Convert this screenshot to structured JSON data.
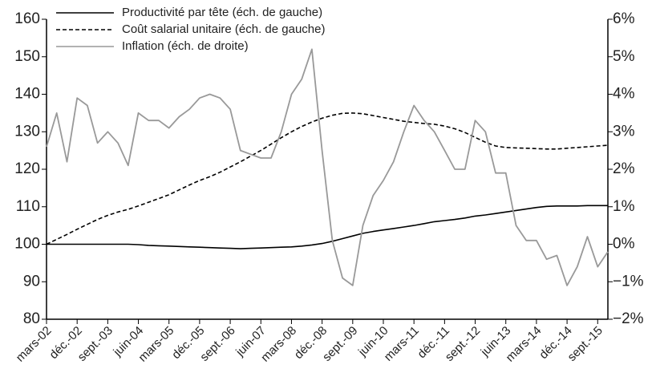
{
  "chart_data": {
    "type": "line",
    "categories": [
      "mars-02",
      null,
      null,
      "déc.-02",
      null,
      null,
      "sept.-03",
      null,
      null,
      "juin-04",
      null,
      null,
      "mars-05",
      null,
      null,
      "déc.-05",
      null,
      null,
      "sept.-06",
      null,
      null,
      "juin-07",
      null,
      null,
      "mars-08",
      null,
      null,
      "déc.-08",
      null,
      null,
      "sept.-09",
      null,
      null,
      "juin-10",
      null,
      null,
      "mars-11",
      null,
      null,
      "déc.-11",
      null,
      null,
      "sept.-12",
      null,
      null,
      "juin-13",
      null,
      null,
      "mars-14",
      null,
      null,
      "déc.-14",
      null,
      null,
      "sept.-15",
      null
    ],
    "series": [
      {
        "name": "Productivité par tête (éch. de gauche)",
        "color": "#000000",
        "style": "solid",
        "values": [
          100,
          100,
          100,
          100,
          100,
          100,
          100,
          100,
          100,
          99.9,
          99.7,
          99.6,
          99.5,
          99.4,
          99.3,
          99.2,
          99.1,
          99.0,
          98.9,
          98.8,
          98.9,
          99.0,
          99.1,
          99.2,
          99.3,
          99.5,
          99.8,
          100.2,
          100.8,
          101.5,
          102.2,
          102.9,
          103.4,
          103.8,
          104.2,
          104.6,
          105.0,
          105.5,
          106.0,
          106.3,
          106.6,
          107.0,
          107.5,
          107.8,
          108.2,
          108.6,
          109.0,
          109.4,
          109.8,
          110.1,
          110.2,
          110.2,
          110.2,
          110.3,
          110.3,
          110.3
        ]
      },
      {
        "name": "Coût salarial unitaire (éch. de gauche)",
        "color": "#000000",
        "style": "dashed",
        "values": [
          100,
          101.3,
          102.6,
          104,
          105.3,
          106.6,
          107.7,
          108.6,
          109.3,
          110.2,
          111.2,
          112.2,
          113.2,
          114.5,
          115.8,
          117,
          118,
          119.2,
          120.6,
          122,
          123.5,
          125,
          126.7,
          128.4,
          130,
          131.4,
          132.6,
          133.6,
          134.4,
          134.9,
          135,
          134.8,
          134.3,
          133.8,
          133.3,
          132.8,
          132.5,
          132.2,
          132,
          131.5,
          130.8,
          129.8,
          128.5,
          127.2,
          126.2,
          125.8,
          125.7,
          125.6,
          125.5,
          125.4,
          125.4,
          125.6,
          125.8,
          126,
          126.2,
          126.4
        ]
      },
      {
        "name": "Inflation (éch. de droite)",
        "color": "#999999",
        "style": "solid",
        "axis": "y2",
        "values": [
          2.6,
          3.5,
          2.2,
          3.9,
          3.7,
          2.7,
          3.0,
          2.7,
          2.1,
          3.5,
          3.3,
          3.3,
          3.1,
          3.4,
          3.6,
          3.9,
          4.0,
          3.9,
          3.6,
          2.5,
          2.4,
          2.3,
          2.3,
          3.0,
          4.0,
          4.4,
          5.2,
          2.5,
          0.1,
          -0.9,
          -1.1,
          0.5,
          1.3,
          1.7,
          2.2,
          3.0,
          3.7,
          3.3,
          3.0,
          2.5,
          2.0,
          2.0,
          3.3,
          3.0,
          1.9,
          1.9,
          0.5,
          0.1,
          0.1,
          -0.4,
          -0.3,
          -1.1,
          -0.6,
          0.2,
          -0.6,
          -0.2
        ]
      }
    ],
    "ylim": [
      80,
      160
    ],
    "yticks": [
      80,
      90,
      100,
      110,
      120,
      130,
      140,
      150,
      160
    ],
    "y2lim": [
      -2,
      6
    ],
    "y2ticks": [
      {
        "value": -2,
        "label": "−2%"
      },
      {
        "value": -1,
        "label": "−1%"
      },
      {
        "value": 0,
        "label": "0%"
      },
      {
        "value": 1,
        "label": "1%"
      },
      {
        "value": 2,
        "label": "2%"
      },
      {
        "value": 3,
        "label": "3%"
      },
      {
        "value": 4,
        "label": "4%"
      },
      {
        "value": 5,
        "label": "5%"
      },
      {
        "value": 6,
        "label": "6%"
      }
    ],
    "grid": false,
    "legend": "top-left"
  }
}
